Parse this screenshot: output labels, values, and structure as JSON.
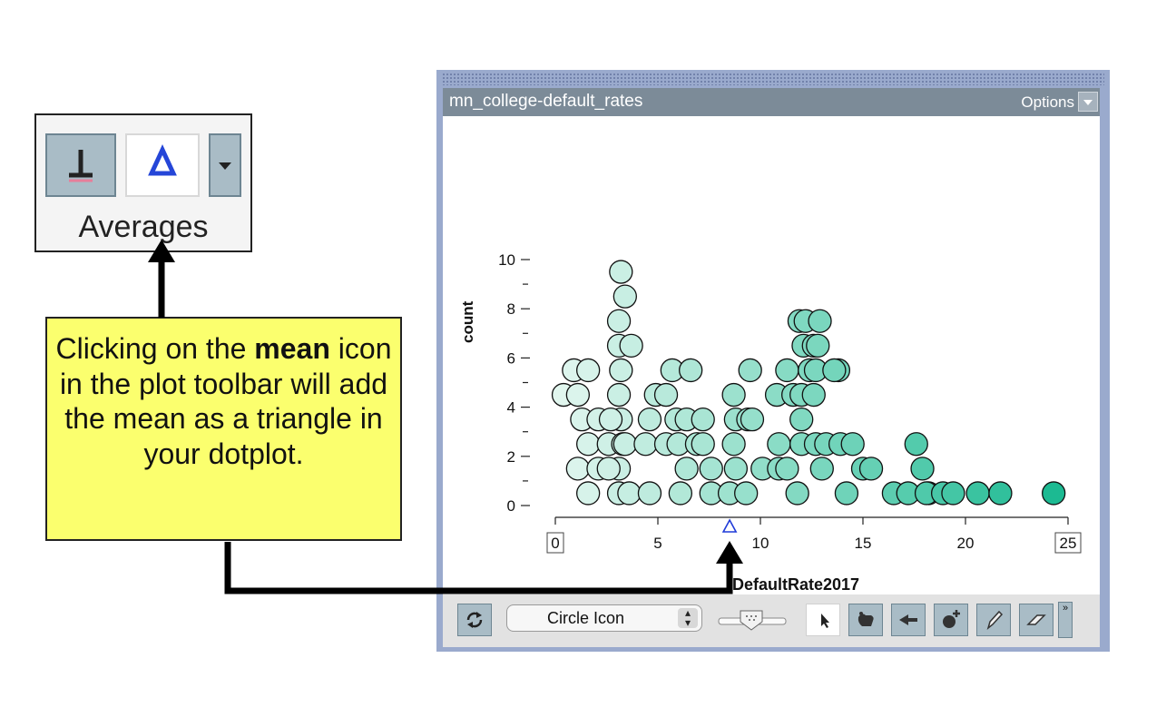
{
  "averages_toolbar": {
    "label": "Averages",
    "buttons": [
      {
        "name": "median",
        "icon": "median-icon"
      },
      {
        "name": "mean",
        "icon": "mean-triangle-icon",
        "selected": true
      },
      {
        "name": "more",
        "icon": "chevron-down-icon"
      }
    ]
  },
  "note": {
    "text_before": "Clicking on the ",
    "bold": "mean",
    "text_after": " icon in the plot toolbar will add the mean as a triangle in your dotplot."
  },
  "window": {
    "title": "mn_college-default_rates",
    "options_label": "Options"
  },
  "toolbar": {
    "point_style": "Circle Icon",
    "tools": [
      "refresh-icon",
      "arrow-cursor-icon",
      "hand-pan-icon",
      "back-arrow-icon",
      "add-point-icon",
      "pencil-icon",
      "eraser-icon"
    ]
  },
  "colors": {
    "point_light": "#e4f7f0",
    "point_dark": "#16b88f",
    "mean_marker": "#1f3ad8",
    "note_bg": "#fbff6e",
    "window_frame": "#9aaacd"
  },
  "chart_data": {
    "type": "scatter",
    "title": "",
    "xlabel": "DefaultRate2017",
    "ylabel": "count",
    "xlim": [
      0,
      25
    ],
    "ylim": [
      0,
      10
    ],
    "x_ticks": [
      0,
      5,
      10,
      15,
      20,
      25
    ],
    "y_ticks": [
      0,
      2,
      4,
      6,
      8,
      10
    ],
    "mean_x": 8.5,
    "points": [
      [
        0.9,
        5.5
      ],
      [
        0.4,
        4.5
      ],
      [
        1.1,
        4.5
      ],
      [
        1.6,
        5.5
      ],
      [
        1.3,
        3.5
      ],
      [
        2.1,
        3.5
      ],
      [
        1.6,
        2.5
      ],
      [
        1.1,
        1.5
      ],
      [
        2.1,
        1.5
      ],
      [
        1.6,
        0.5
      ],
      [
        3.2,
        9.5
      ],
      [
        3.4,
        8.5
      ],
      [
        3.1,
        7.5
      ],
      [
        3.1,
        6.5
      ],
      [
        3.7,
        6.5
      ],
      [
        3.2,
        5.5
      ],
      [
        3.1,
        4.5
      ],
      [
        3.2,
        3.5
      ],
      [
        2.7,
        3.5
      ],
      [
        2.6,
        2.5
      ],
      [
        3.3,
        2.5
      ],
      [
        3.4,
        2.5
      ],
      [
        3.1,
        1.5
      ],
      [
        2.6,
        1.5
      ],
      [
        3.1,
        0.5
      ],
      [
        3.6,
        0.5
      ],
      [
        4.6,
        0.5
      ],
      [
        4.4,
        2.5
      ],
      [
        4.6,
        3.5
      ],
      [
        4.9,
        4.5
      ],
      [
        5.4,
        4.5
      ],
      [
        5.7,
        5.5
      ],
      [
        5.4,
        2.5
      ],
      [
        5.9,
        3.5
      ],
      [
        6.6,
        5.5
      ],
      [
        6.4,
        3.5
      ],
      [
        6.0,
        2.5
      ],
      [
        6.4,
        1.5
      ],
      [
        6.1,
        0.5
      ],
      [
        6.9,
        2.5
      ],
      [
        7.2,
        2.5
      ],
      [
        7.2,
        3.5
      ],
      [
        7.6,
        1.5
      ],
      [
        7.6,
        0.5
      ],
      [
        8.5,
        0.5
      ],
      [
        8.8,
        1.5
      ],
      [
        8.7,
        2.5
      ],
      [
        8.8,
        3.5
      ],
      [
        8.7,
        4.5
      ],
      [
        9.3,
        0.5
      ],
      [
        9.5,
        5.5
      ],
      [
        9.4,
        3.5
      ],
      [
        9.6,
        3.5
      ],
      [
        10.1,
        1.5
      ],
      [
        10.9,
        1.5
      ],
      [
        10.9,
        2.5
      ],
      [
        10.8,
        4.5
      ],
      [
        11.3,
        5.5
      ],
      [
        11.6,
        4.5
      ],
      [
        11.3,
        1.5
      ],
      [
        11.9,
        7.5
      ],
      [
        12.2,
        7.5
      ],
      [
        12.1,
        6.5
      ],
      [
        12.4,
        5.5
      ],
      [
        12.0,
        4.5
      ],
      [
        12.0,
        3.5
      ],
      [
        12.0,
        2.5
      ],
      [
        11.8,
        0.5
      ],
      [
        12.9,
        7.5
      ],
      [
        12.6,
        6.5
      ],
      [
        12.8,
        6.5
      ],
      [
        12.7,
        5.5
      ],
      [
        12.6,
        4.5
      ],
      [
        12.7,
        2.5
      ],
      [
        13.0,
        1.5
      ],
      [
        13.2,
        2.5
      ],
      [
        13.8,
        5.5
      ],
      [
        13.6,
        5.5
      ],
      [
        13.9,
        2.5
      ],
      [
        14.2,
        0.5
      ],
      [
        14.5,
        2.5
      ],
      [
        15.0,
        1.5
      ],
      [
        15.4,
        1.5
      ],
      [
        16.5,
        0.5
      ],
      [
        17.2,
        0.5
      ],
      [
        17.6,
        2.5
      ],
      [
        17.9,
        1.5
      ],
      [
        18.2,
        0.5
      ],
      [
        18.1,
        0.5
      ],
      [
        18.9,
        0.5
      ],
      [
        19.4,
        0.5
      ],
      [
        20.6,
        0.5
      ],
      [
        21.7,
        0.5
      ],
      [
        24.3,
        0.5
      ]
    ]
  }
}
